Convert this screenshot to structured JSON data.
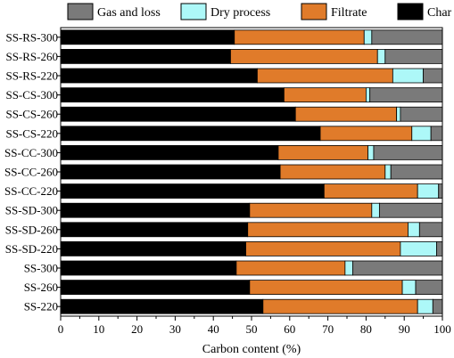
{
  "chart_data": {
    "type": "bar",
    "orientation": "horizontal",
    "stacked": true,
    "categories": [
      "SS-RS-300",
      "SS-RS-260",
      "SS-RS-220",
      "SS-CS-300",
      "SS-CS-260",
      "SS-CS-220",
      "SS-CC-300",
      "SS-CC-260",
      "SS-CC-220",
      "SS-SD-300",
      "SS-SD-260",
      "SS-SD-220",
      "SS-300",
      "SS-260",
      "SS-220"
    ],
    "series": [
      {
        "name": "Char",
        "color": "#000000",
        "values": [
          45.5,
          44.5,
          51.5,
          58.5,
          61.5,
          68.0,
          57.0,
          57.5,
          69.0,
          49.5,
          49.0,
          48.5,
          46.0,
          49.5,
          53.0
        ]
      },
      {
        "name": "Filtrate",
        "color": "#e07b2a",
        "values": [
          34.0,
          38.5,
          35.5,
          21.5,
          26.5,
          24.0,
          23.5,
          27.5,
          24.5,
          32.0,
          42.0,
          40.5,
          28.5,
          40.0,
          40.5
        ]
      },
      {
        "name": "Dry process",
        "color": "#adf8f8",
        "values": [
          2.0,
          2.0,
          8.0,
          1.0,
          1.0,
          5.0,
          1.5,
          1.5,
          5.5,
          2.0,
          3.0,
          9.5,
          2.0,
          3.5,
          4.0
        ]
      },
      {
        "name": "Gas and loss",
        "color": "#7a7a7a",
        "values": [
          18.5,
          15.0,
          5.0,
          19.0,
          11.0,
          3.0,
          18.0,
          13.5,
          1.0,
          16.5,
          6.0,
          1.5,
          23.5,
          7.0,
          2.5
        ]
      }
    ],
    "legend_order": [
      "Gas and loss",
      "Dry process",
      "Filtrate",
      "Char"
    ],
    "legend_position": "top",
    "xlabel": "Carbon content (%)",
    "xlim": [
      0,
      100
    ],
    "xticks": [
      "0",
      "10",
      "20",
      "30",
      "40",
      "50",
      "60",
      "70",
      "80",
      "90",
      "100"
    ],
    "grid": false
  }
}
